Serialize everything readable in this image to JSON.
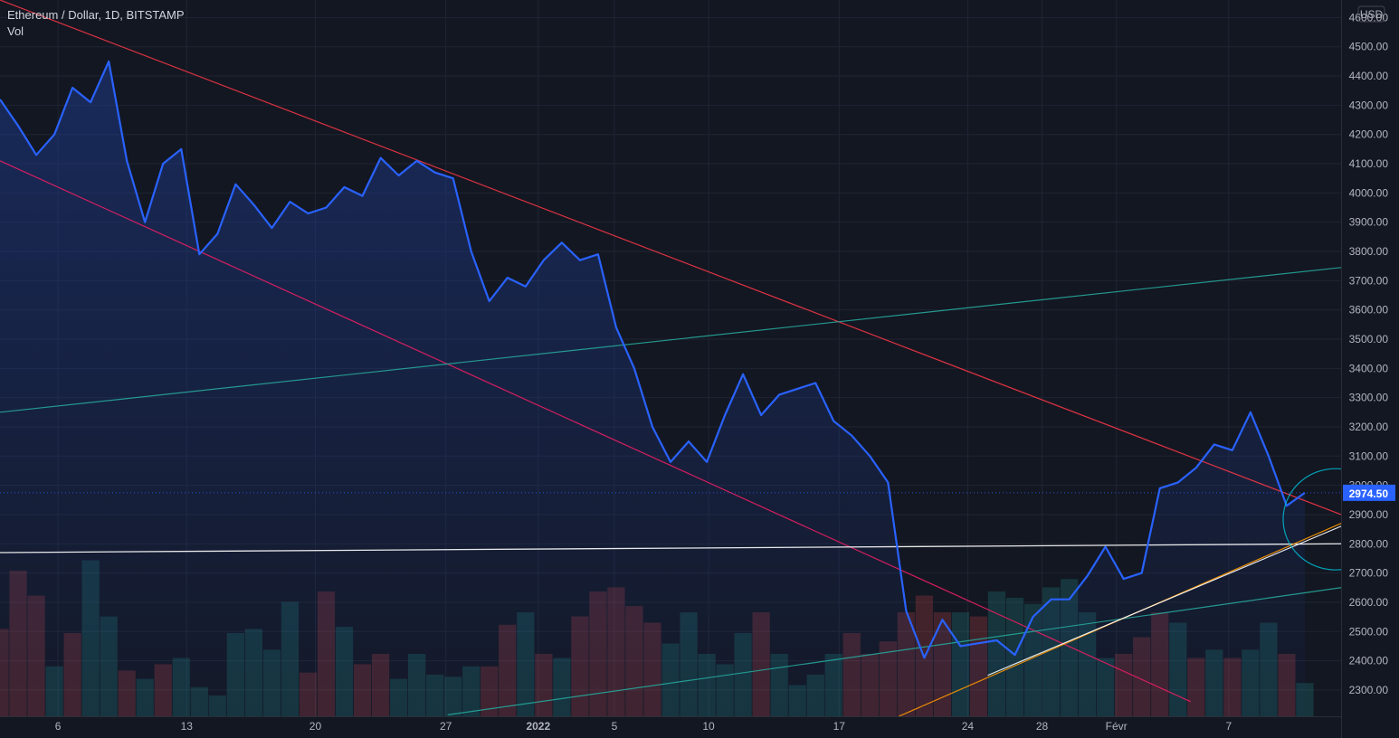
{
  "header": {
    "title": "Ethereum / Dollar, 1D, BITSTAMP",
    "indicator": "Vol"
  },
  "currency": "USD",
  "last_price_label": "2974.50",
  "colors": {
    "background": "#131722",
    "price_line": "#2962ff",
    "price_fill": "#1e3a8a",
    "downtrend": "#f23645",
    "channel_lower": "#e91e63",
    "teal_trend": "#26a69a",
    "support": "#ffffff",
    "orange_trend": "#ff9800",
    "circle": "#00bcd4",
    "vol_up": "#26a69a",
    "vol_down": "#ef5350",
    "price_badge": "#2962ff"
  },
  "chart_data": {
    "type": "line",
    "title": "Ethereum / Dollar, 1D, BITSTAMP",
    "ylim": [
      2210,
      4660
    ],
    "y_ticks": [
      2300,
      2400,
      2500,
      2600,
      2700,
      2800,
      2900,
      3000,
      3100,
      3200,
      3300,
      3400,
      3500,
      3600,
      3700,
      3800,
      3900,
      4000,
      4100,
      4200,
      4300,
      4400,
      4500,
      4600
    ],
    "y_tick_labels": [
      "2300.00",
      "2400.00",
      "2500.00",
      "2600.00",
      "2700.00",
      "2800.00",
      "2900.00",
      "3000.00",
      "3100.00",
      "3200.00",
      "3300.00",
      "3400.00",
      "3500.00",
      "3600.00",
      "3700.00",
      "3800.00",
      "3900.00",
      "4000.00",
      "4100.00",
      "4200.00",
      "4300.00",
      "4400.00",
      "4500.00",
      "4600.00"
    ],
    "x_range": [
      0,
      74
    ],
    "x_ticks": [
      {
        "x": 3.2,
        "label": "6"
      },
      {
        "x": 10.3,
        "label": "13"
      },
      {
        "x": 17.4,
        "label": "20"
      },
      {
        "x": 24.6,
        "label": "27"
      },
      {
        "x": 29.7,
        "label": "2022"
      },
      {
        "x": 33.9,
        "label": "5"
      },
      {
        "x": 39.1,
        "label": "10"
      },
      {
        "x": 46.3,
        "label": "17"
      },
      {
        "x": 53.4,
        "label": "24"
      },
      {
        "x": 57.5,
        "label": "28"
      },
      {
        "x": 61.6,
        "label": "Févr"
      },
      {
        "x": 67.8,
        "label": "7"
      }
    ],
    "last_price": 2974.5,
    "series": [
      {
        "values": [
          4320,
          4230,
          4130,
          4200,
          4360,
          4310,
          4450,
          4110,
          3900,
          4100,
          4150,
          3790,
          3860,
          4030,
          3960,
          3880,
          3970,
          3930,
          3950,
          4020,
          3990,
          4120,
          4060,
          4110,
          4070,
          4050,
          3800,
          3630,
          3710,
          3680,
          3770,
          3830,
          3770,
          3790,
          3540,
          3400,
          3200,
          3080,
          3150,
          3080,
          3240,
          3380,
          3240,
          3310,
          3330,
          3350,
          3220,
          3170,
          3100,
          3010,
          2570,
          2410,
          2540,
          2450,
          2460,
          2470,
          2420,
          2550,
          2610,
          2610,
          2690,
          2790,
          2680,
          2700,
          2990,
          3010,
          3060,
          3140,
          3120,
          3250,
          3100,
          2930,
          2974.5
        ]
      }
    ],
    "volume": [
      {
        "v": 42,
        "dir": "down"
      },
      {
        "v": 70,
        "dir": "down"
      },
      {
        "v": 58,
        "dir": "down"
      },
      {
        "v": 24,
        "dir": "up"
      },
      {
        "v": 40,
        "dir": "down"
      },
      {
        "v": 75,
        "dir": "up"
      },
      {
        "v": 48,
        "dir": "up"
      },
      {
        "v": 22,
        "dir": "down"
      },
      {
        "v": 18,
        "dir": "up"
      },
      {
        "v": 25,
        "dir": "down"
      },
      {
        "v": 28,
        "dir": "up"
      },
      {
        "v": 14,
        "dir": "up"
      },
      {
        "v": 10,
        "dir": "up"
      },
      {
        "v": 40,
        "dir": "up"
      },
      {
        "v": 42,
        "dir": "up"
      },
      {
        "v": 32,
        "dir": "up"
      },
      {
        "v": 55,
        "dir": "up"
      },
      {
        "v": 21,
        "dir": "down"
      },
      {
        "v": 60,
        "dir": "down"
      },
      {
        "v": 43,
        "dir": "up"
      },
      {
        "v": 25,
        "dir": "down"
      },
      {
        "v": 30,
        "dir": "down"
      },
      {
        "v": 18,
        "dir": "up"
      },
      {
        "v": 30,
        "dir": "up"
      },
      {
        "v": 20,
        "dir": "up"
      },
      {
        "v": 19,
        "dir": "up"
      },
      {
        "v": 24,
        "dir": "up"
      },
      {
        "v": 24,
        "dir": "down"
      },
      {
        "v": 44,
        "dir": "down"
      },
      {
        "v": 50,
        "dir": "up"
      },
      {
        "v": 30,
        "dir": "down"
      },
      {
        "v": 28,
        "dir": "up"
      },
      {
        "v": 48,
        "dir": "down"
      },
      {
        "v": 60,
        "dir": "down"
      },
      {
        "v": 62,
        "dir": "down"
      },
      {
        "v": 53,
        "dir": "down"
      },
      {
        "v": 45,
        "dir": "down"
      },
      {
        "v": 35,
        "dir": "up"
      },
      {
        "v": 50,
        "dir": "up"
      },
      {
        "v": 30,
        "dir": "up"
      },
      {
        "v": 25,
        "dir": "up"
      },
      {
        "v": 40,
        "dir": "up"
      },
      {
        "v": 50,
        "dir": "down"
      },
      {
        "v": 30,
        "dir": "up"
      },
      {
        "v": 15,
        "dir": "up"
      },
      {
        "v": 20,
        "dir": "up"
      },
      {
        "v": 30,
        "dir": "up"
      },
      {
        "v": 40,
        "dir": "down"
      },
      {
        "v": 30,
        "dir": "down"
      },
      {
        "v": 36,
        "dir": "down"
      },
      {
        "v": 50,
        "dir": "down"
      },
      {
        "v": 58,
        "dir": "down"
      },
      {
        "v": 50,
        "dir": "down"
      },
      {
        "v": 50,
        "dir": "up"
      },
      {
        "v": 48,
        "dir": "down"
      },
      {
        "v": 60,
        "dir": "up"
      },
      {
        "v": 57,
        "dir": "up"
      },
      {
        "v": 54,
        "dir": "up"
      },
      {
        "v": 62,
        "dir": "up"
      },
      {
        "v": 66,
        "dir": "up"
      },
      {
        "v": 50,
        "dir": "up"
      },
      {
        "v": 28,
        "dir": "up"
      },
      {
        "v": 30,
        "dir": "down"
      },
      {
        "v": 38,
        "dir": "down"
      },
      {
        "v": 50,
        "dir": "down"
      },
      {
        "v": 45,
        "dir": "up"
      },
      {
        "v": 28,
        "dir": "down"
      },
      {
        "v": 32,
        "dir": "up"
      },
      {
        "v": 28,
        "dir": "down"
      },
      {
        "v": 32,
        "dir": "up"
      },
      {
        "v": 45,
        "dir": "up"
      },
      {
        "v": 30,
        "dir": "down"
      },
      {
        "v": 16,
        "dir": "up"
      }
    ],
    "trendlines": [
      {
        "name": "downtrend-resistance",
        "color": "#f23645",
        "points": [
          [
            0,
            4660
          ],
          [
            74,
            2900
          ]
        ]
      },
      {
        "name": "channel-lower",
        "color": "#e91e63",
        "points": [
          [
            0,
            4110
          ],
          [
            65.7,
            2260
          ]
        ]
      },
      {
        "name": "teal-upper",
        "color": "#26a69a",
        "points": [
          [
            0,
            3250
          ],
          [
            74,
            3745
          ]
        ]
      },
      {
        "name": "teal-lower",
        "color": "#26a69a",
        "points": [
          [
            24.7,
            2215
          ],
          [
            74,
            2650
          ]
        ]
      },
      {
        "name": "support-horizontal",
        "color": "#ffffff",
        "points": [
          [
            0,
            2770
          ],
          [
            74,
            2800
          ]
        ]
      },
      {
        "name": "orange-rising",
        "color": "#ff9800",
        "points": [
          [
            49.6,
            2210
          ],
          [
            74,
            2870
          ]
        ]
      },
      {
        "name": "white-rising",
        "color": "#ffffff",
        "points": [
          [
            54.5,
            2350
          ],
          [
            74,
            2860
          ]
        ]
      }
    ],
    "annotations": [
      {
        "type": "circle",
        "color": "#00bcd4",
        "center": [
          72.5,
          2890
        ],
        "note": ""
      }
    ]
  }
}
